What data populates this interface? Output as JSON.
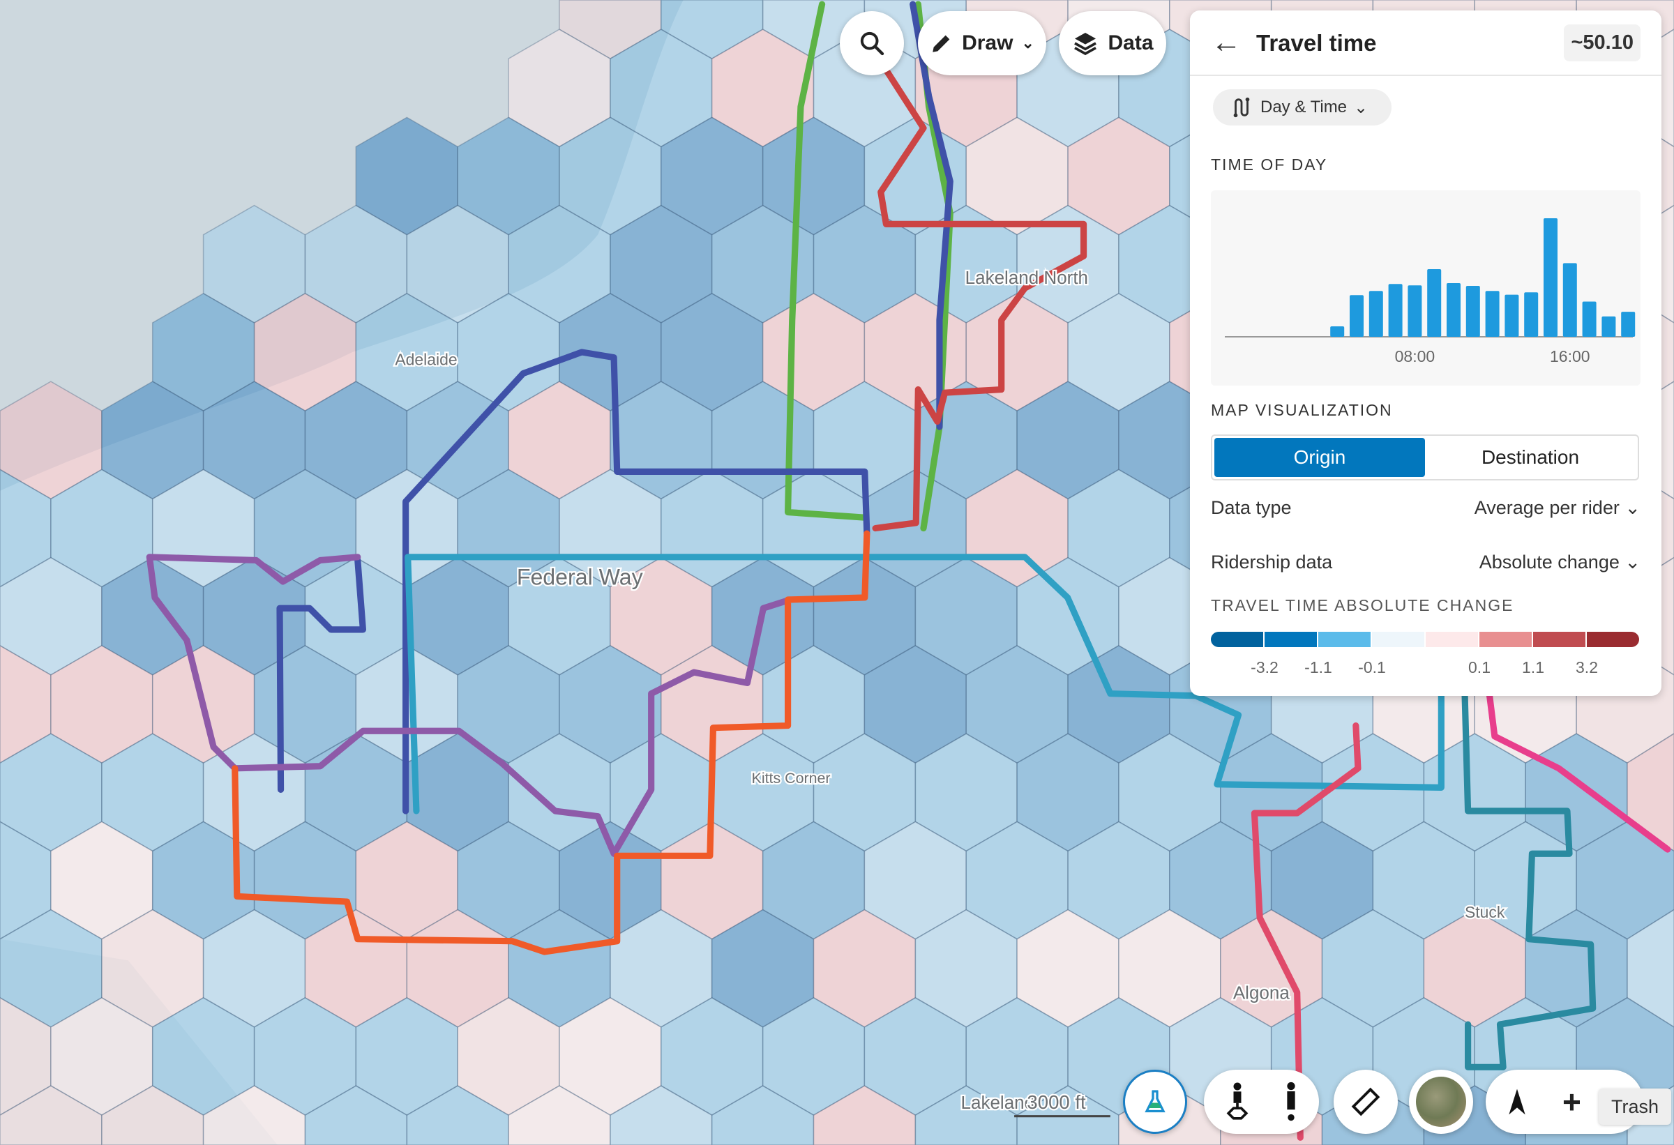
{
  "map": {
    "labels": {
      "adelaide": "Adelaide",
      "lakeland_north": "Lakeland North",
      "federal_way": "Federal Way",
      "kitts_corner": "Kitts Corner",
      "stuck": "Stuck",
      "algona": "Algona",
      "lakeland": "Lakeland"
    },
    "scale_label": "3000 ft",
    "route_colors": [
      "#5db345",
      "#3f51a8",
      "#2fa0c4",
      "#8e5aa8",
      "#f05a28",
      "#cc4444",
      "#e04a6a",
      "#e83e8c",
      "#2a8aa0"
    ]
  },
  "toolbar": {
    "search_icon": "magnifier-icon",
    "draw_label": "Draw",
    "data_label": "Data"
  },
  "panel": {
    "back_icon": "arrow-left-icon",
    "title": "Travel time",
    "value": "~50.10",
    "day_time_label": "Day & Time",
    "time_of_day_heading": "TIME OF DAY",
    "map_viz_heading": "MAP VISUALIZATION",
    "segment": {
      "origin": "Origin",
      "destination": "Destination",
      "selected": "Origin"
    },
    "data_type_label": "Data type",
    "data_type_value": "Average per rider",
    "ridership_label": "Ridership data",
    "ridership_value": "Absolute change",
    "legend_heading": "TRAVEL TIME ABSOLUTE CHANGE",
    "legend_colors": [
      "#01629e",
      "#0277bd",
      "#5bbbea",
      "#eef6fb",
      "#fde9ea",
      "#e88f90",
      "#c04c50",
      "#9a2c30"
    ],
    "legend_ticks": [
      "-3.2",
      "-1.1",
      "-0.1",
      "0.1",
      "1.1",
      "3.2"
    ]
  },
  "chart_data": {
    "type": "bar",
    "title": "",
    "categories": [
      "00:00",
      "01:00",
      "02:00",
      "03:00",
      "04:00",
      "05:00",
      "06:00",
      "07:00",
      "08:00",
      "09:00",
      "10:00",
      "11:00",
      "12:00",
      "13:00",
      "14:00",
      "15:00",
      "16:00",
      "17:00",
      "18:00",
      "19:00",
      "20:00",
      "21:00",
      "22:00",
      "23:00"
    ],
    "values": [
      0,
      0,
      0,
      0,
      45,
      180,
      198,
      228,
      222,
      292,
      232,
      220,
      198,
      182,
      192,
      512,
      318,
      152,
      88,
      108,
      72,
      90,
      2,
      0
    ],
    "tick_labels": [
      "08:00",
      "16:00"
    ],
    "color": "#1e9ade",
    "grid": false
  },
  "bottom_toolbar": {
    "lab_icon": "flask-icon",
    "pedestrian_origin_icon": "person-origin-icon",
    "pedestrian_icon": "person-icon",
    "ruler_icon": "ruler-icon",
    "satellite_icon": "satellite-thumbnail",
    "compass_icon": "north-arrow-icon",
    "zoom_in_icon": "plus-icon",
    "trash_tooltip": "Trash"
  }
}
